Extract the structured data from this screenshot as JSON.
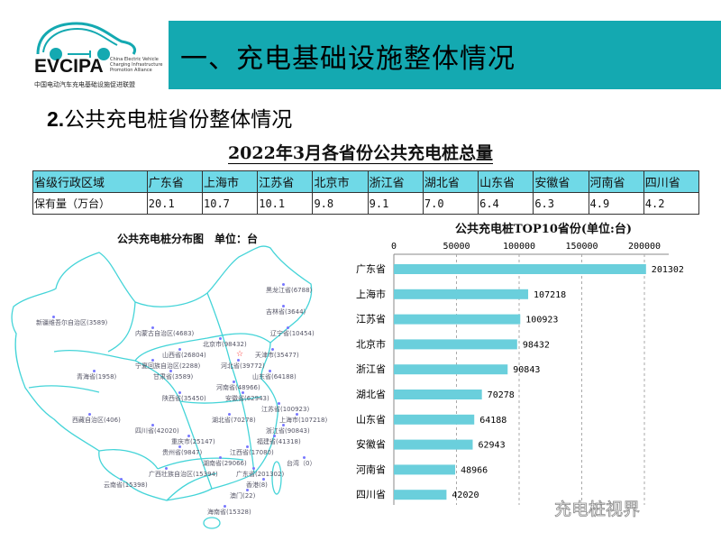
{
  "logo": {
    "name": "EVCIPA",
    "en": "China Electric Vehicle Charging Infrastructure Promotion Alliance",
    "cn": "中国电动汽车充电基础设施促进联盟"
  },
  "header": {
    "title": "一、充电基础设施整体情况",
    "accent": "#14a9b1"
  },
  "subtitle": {
    "num": "2.",
    "text": "公共充电桩省份整体情况"
  },
  "table": {
    "title": "2022年3月各省份公共充电桩总量",
    "header": [
      "省级行政区域",
      "广东省",
      "上海市",
      "江苏省",
      "北京市",
      "浙江省",
      "湖北省",
      "山东省",
      "安徽省",
      "河南省",
      "四川省"
    ],
    "row": [
      "保有量（万台）",
      "20.1",
      "10.7",
      "10.1",
      "9.8",
      "9.1",
      "7.0",
      "6.4",
      "6.3",
      "4.9",
      "4.2"
    ]
  },
  "map": {
    "title": "公共充电桩分布图　单位：台",
    "labels": [
      {
        "t": "黑龙江省(6788)"
      },
      {
        "t": "吉林省(3644)"
      },
      {
        "t": "新疆维吾尔自治区(3589)"
      },
      {
        "t": "内蒙古自治区(4683)"
      },
      {
        "t": "北京市(98432)"
      },
      {
        "t": "辽宁省(10454)"
      },
      {
        "t": "天津市(35477)"
      },
      {
        "t": "山西省(26804)"
      },
      {
        "t": "河北省(39772)"
      },
      {
        "t": "青海省(1958)"
      },
      {
        "t": "宁夏回族自治区(2288)"
      },
      {
        "t": "山东省(64188)"
      },
      {
        "t": "甘肃省(3589)"
      },
      {
        "t": "河南省(48966)"
      },
      {
        "t": "陕西省(35450)"
      },
      {
        "t": "安徽省(62943)"
      },
      {
        "t": "江苏省(100923)"
      },
      {
        "t": "上海市(107218)"
      },
      {
        "t": "西藏自治区(406)"
      },
      {
        "t": "湖北省(70278)"
      },
      {
        "t": "浙江省(90843)"
      },
      {
        "t": "四川省(42020)"
      },
      {
        "t": "重庆市(25147)"
      },
      {
        "t": "福建省(41318)"
      },
      {
        "t": "江西省(17080)"
      },
      {
        "t": "贵州省(9847)"
      },
      {
        "t": "湖南省(29066)"
      },
      {
        "t": "台湾（0）"
      },
      {
        "t": "广西壮族自治区(15394)"
      },
      {
        "t": "广东省(201302)"
      },
      {
        "t": "云南省(15398)"
      },
      {
        "t": "香港(8)"
      },
      {
        "t": "澳门(22)"
      },
      {
        "t": "海南省(15328)"
      }
    ]
  },
  "chart_data": {
    "type": "bar",
    "orientation": "horizontal",
    "title": "公共充电桩TOP10省份(单位:台)",
    "categories": [
      "广东省",
      "上海市",
      "江苏省",
      "北京市",
      "浙江省",
      "湖北省",
      "山东省",
      "安徽省",
      "河南省",
      "四川省"
    ],
    "values": [
      201302,
      107218,
      100923,
      98432,
      90843,
      70278,
      64188,
      62943,
      48966,
      42020
    ],
    "xticks": [
      0,
      50000,
      100000,
      150000,
      200000
    ],
    "xlim": [
      0,
      220000
    ],
    "bar_color": "#6acfdc",
    "grid": true
  },
  "watermark": "充电桩视界"
}
